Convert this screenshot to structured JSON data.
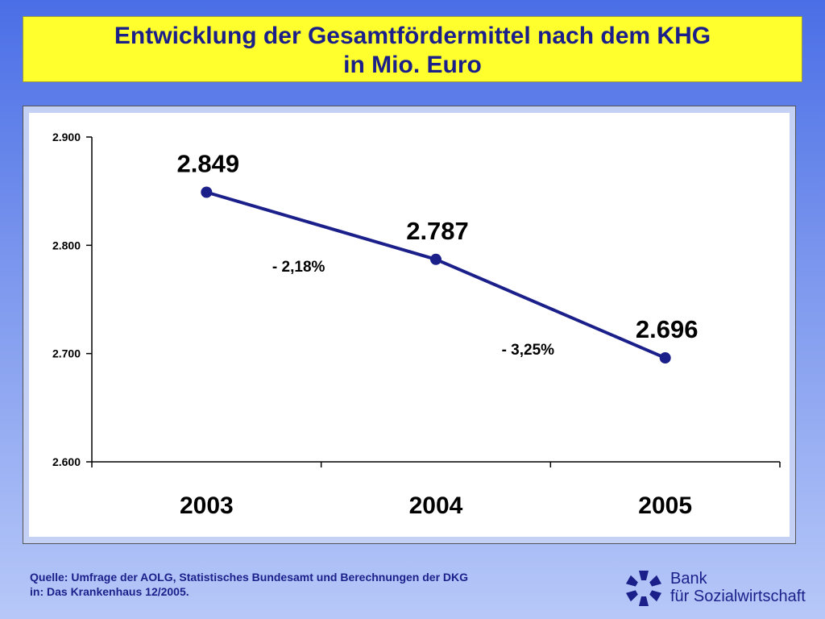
{
  "title": {
    "line1": "Entwicklung der Gesamtfördermittel nach dem KHG",
    "line2": "in Mio. Euro"
  },
  "chart_data": {
    "type": "line",
    "categories": [
      "2003",
      "2004",
      "2005"
    ],
    "series": [
      {
        "values": [
          2849,
          2787,
          2696
        ]
      }
    ],
    "data_labels": [
      "2.849",
      "2.787",
      "2.696"
    ],
    "y_ticks": [
      {
        "value": 2600,
        "label": "2.600"
      },
      {
        "value": 2700,
        "label": "2.700"
      },
      {
        "value": 2800,
        "label": "2.800"
      },
      {
        "value": 2900,
        "label": "2.900"
      }
    ],
    "ylim": [
      2600,
      2900
    ],
    "annotations": [
      {
        "text": "- 2,18%",
        "between": [
          "2003",
          "2004"
        ]
      },
      {
        "text": "- 3,25%",
        "between": [
          "2004",
          "2005"
        ]
      }
    ],
    "grid": false,
    "line_color": "#1b1f8a"
  },
  "source": {
    "line1": "Quelle: Umfrage der AOLG, Statistisches Bundesamt und Berechnungen der DKG",
    "line2": "in: Das Krankenhaus 12/2005."
  },
  "logo": {
    "line1": "Bank",
    "line2": "für Sozialwirtschaft",
    "color": "#1b1f8a"
  }
}
